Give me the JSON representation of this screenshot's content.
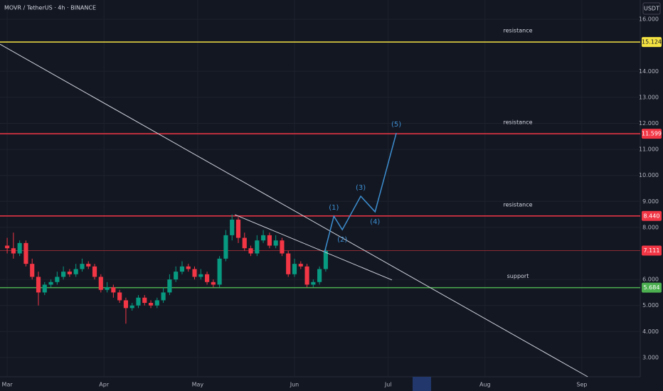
{
  "chart_data": {
    "type": "candlestick",
    "title": "MOVR / TetherUS · 4h · BINANCE",
    "currency_label": "USDT",
    "up_color": "#089981",
    "down_color": "#f23645",
    "x": [
      0,
      2,
      4,
      6,
      8,
      10,
      12,
      14,
      16,
      18,
      20,
      22,
      24,
      26,
      28,
      30,
      32,
      34,
      36,
      38,
      40,
      42,
      44,
      46,
      48,
      50,
      52,
      54,
      56,
      58,
      60,
      62,
      64,
      66,
      68,
      70,
      72,
      74,
      76,
      78,
      80,
      82,
      84,
      86,
      88,
      90,
      92,
      94,
      96,
      98,
      100,
      102
    ],
    "open": [
      7.3,
      7.2,
      7.0,
      7.4,
      6.6,
      6.1,
      5.5,
      5.8,
      5.9,
      6.1,
      6.3,
      6.2,
      6.4,
      6.6,
      6.5,
      6.1,
      5.6,
      5.7,
      5.5,
      5.2,
      4.9,
      5.0,
      5.3,
      5.1,
      5.0,
      5.2,
      5.5,
      6.0,
      6.3,
      6.5,
      6.4,
      6.1,
      6.2,
      5.9,
      5.8,
      6.8,
      7.7,
      8.3,
      7.6,
      7.2,
      7.0,
      7.5,
      7.7,
      7.3,
      7.5,
      7.0,
      6.2,
      6.6,
      6.5,
      5.8,
      5.9,
      6.4
    ],
    "close": [
      7.2,
      7.0,
      7.4,
      6.6,
      6.1,
      5.5,
      5.8,
      5.9,
      6.1,
      6.3,
      6.2,
      6.4,
      6.6,
      6.5,
      6.1,
      5.6,
      5.7,
      5.5,
      5.2,
      4.9,
      5.0,
      5.3,
      5.1,
      5.0,
      5.2,
      5.5,
      6.0,
      6.3,
      6.5,
      6.4,
      6.1,
      6.2,
      5.9,
      5.8,
      6.8,
      7.7,
      8.3,
      7.6,
      7.2,
      7.0,
      7.5,
      7.7,
      7.3,
      7.5,
      7.0,
      6.2,
      6.6,
      6.5,
      5.8,
      5.9,
      6.4,
      7.1
    ],
    "high": [
      7.6,
      7.8,
      7.5,
      7.5,
      6.8,
      6.3,
      5.9,
      6.0,
      6.3,
      6.5,
      6.4,
      6.6,
      6.8,
      6.7,
      6.6,
      6.2,
      5.9,
      5.8,
      5.6,
      5.3,
      5.1,
      5.4,
      5.4,
      5.2,
      5.3,
      5.7,
      6.2,
      6.5,
      6.7,
      6.6,
      6.5,
      6.4,
      6.3,
      6.0,
      6.9,
      7.9,
      8.5,
      8.4,
      7.8,
      7.3,
      7.7,
      7.9,
      7.8,
      7.7,
      7.6,
      7.1,
      6.8,
      6.7,
      6.6,
      6.0,
      6.5,
      7.2
    ],
    "low": [
      7.0,
      6.8,
      6.9,
      6.5,
      6.0,
      5.0,
      5.4,
      5.7,
      5.8,
      6.0,
      6.1,
      6.1,
      6.3,
      6.4,
      6.0,
      5.5,
      5.5,
      5.3,
      5.1,
      4.3,
      4.8,
      4.9,
      5.0,
      4.9,
      4.9,
      5.1,
      5.4,
      5.9,
      6.2,
      6.3,
      6.0,
      6.0,
      5.8,
      5.7,
      5.7,
      6.7,
      7.5,
      7.4,
      7.1,
      6.9,
      6.9,
      7.4,
      7.2,
      7.2,
      6.9,
      6.1,
      6.1,
      6.4,
      5.7,
      5.7,
      5.8,
      6.3
    ],
    "xlim": [
      -2.3,
      202.7
    ],
    "xticks": [
      {
        "value": 0,
        "label": "Mar"
      },
      {
        "value": 31,
        "label": "Apr"
      },
      {
        "value": 61,
        "label": "May"
      },
      {
        "value": 92,
        "label": "Jun"
      },
      {
        "value": 122,
        "label": "Jul"
      },
      {
        "value": 153,
        "label": "Aug"
      },
      {
        "value": 184,
        "label": "Sep"
      }
    ],
    "ylim": [
      2.26,
      16.74
    ],
    "yticks": [
      {
        "value": 16,
        "label": "16.000"
      },
      {
        "value": 14,
        "label": "14.000"
      },
      {
        "value": 13,
        "label": "13.000"
      },
      {
        "value": 12,
        "label": "12.000"
      },
      {
        "value": 11,
        "label": "11.000"
      },
      {
        "value": 10,
        "label": "10.000"
      },
      {
        "value": 9,
        "label": "9.000"
      },
      {
        "value": 8,
        "label": "8.000"
      },
      {
        "value": 6,
        "label": "6.000"
      },
      {
        "value": 5,
        "label": "5.000"
      },
      {
        "value": 4,
        "label": "4.000"
      },
      {
        "value": 3,
        "label": "3.000"
      }
    ],
    "grid": true,
    "levels": [
      {
        "value": 15.124,
        "color": "#f5e342",
        "note": "resistance"
      },
      {
        "value": 11.599,
        "color": "#f23645",
        "note": "resistance"
      },
      {
        "value": 8.44,
        "value_label": "8.440",
        "color": "#f23645",
        "note": "resistance"
      },
      {
        "value": 7.111,
        "color": "#8a2a33",
        "box_color": "#f23645"
      },
      {
        "value": 5.684,
        "color": "#4caf50",
        "note": "support"
      }
    ],
    "trendlines": [
      {
        "x": [
          -2.3,
          185.9
        ],
        "y": [
          15.04,
          2.26
        ],
        "color": "#d1d4dc"
      },
      {
        "x": [
          72.9,
          123.2
        ],
        "y": [
          8.49,
          5.98
        ],
        "color": "#d1d4dc"
      }
    ],
    "wave": {
      "color": "#3d8fd1",
      "x": [
        101.6,
        104.6,
        107.3,
        113.2,
        117.8,
        124.6
      ],
      "y": [
        7.04,
        8.43,
        7.91,
        9.2,
        8.6,
        11.63
      ],
      "labels": [
        "(1)",
        "(2)",
        "(3)",
        "(4)",
        "(5)"
      ]
    }
  }
}
